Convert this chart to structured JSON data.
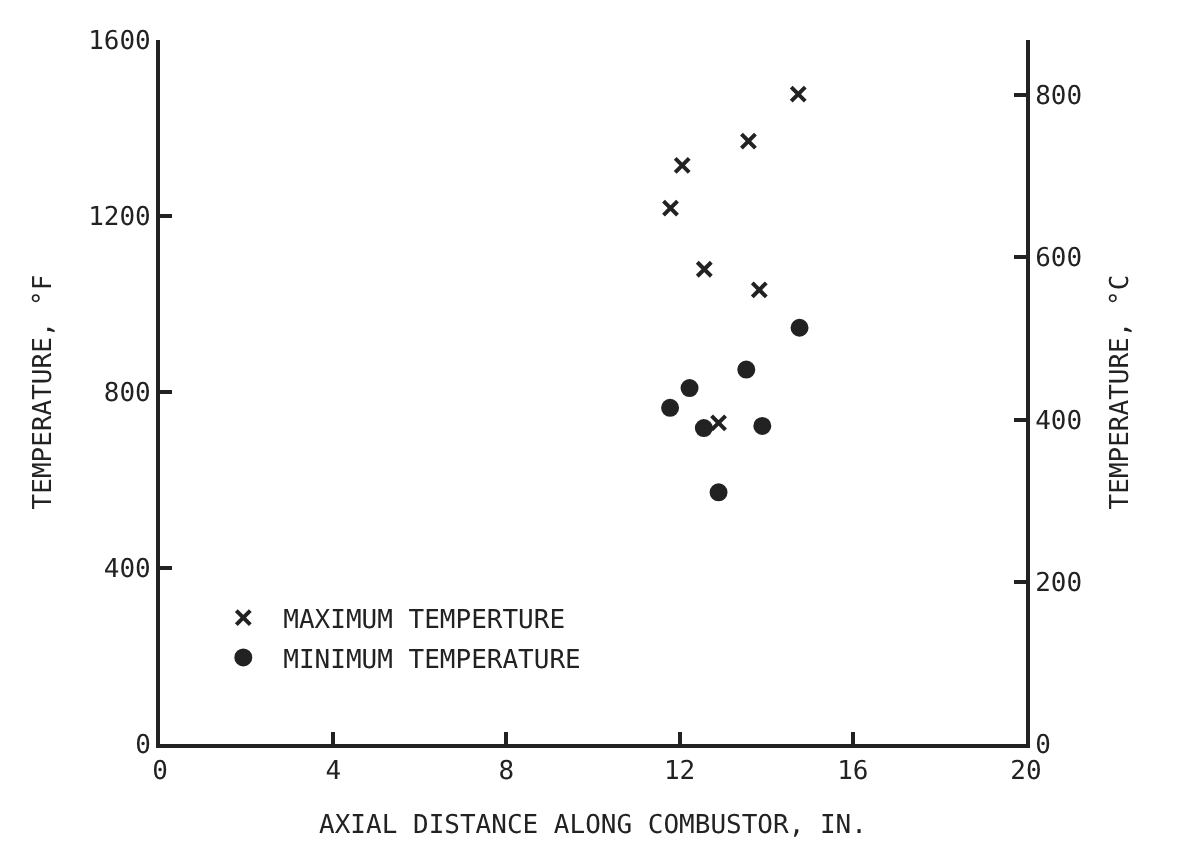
{
  "chart_data": {
    "type": "scatter",
    "xlabel": "AXIAL DISTANCE ALONG COMBUSTOR, IN.",
    "ylabel": "TEMPERATURE, °F",
    "y2label": "TEMPERATURE, °C",
    "xlim": [
      0,
      20
    ],
    "xticks": [
      0,
      4,
      8,
      12,
      16,
      20
    ],
    "ylim": [
      0,
      1600
    ],
    "yticks": [
      0,
      400,
      800,
      1200,
      1600
    ],
    "y2lim": [
      0,
      868
    ],
    "y2ticks": [
      0,
      200,
      400,
      600,
      800
    ],
    "legend": "bottom left",
    "series": [
      {
        "name": "MAXIMUM TEMPERTURE",
        "color": "#222222",
        "marker": "cross",
        "x": [
          14.74,
          13.59,
          12.06,
          11.79,
          12.57,
          13.84,
          12.9
        ],
        "values": [
          1477,
          1370,
          1315,
          1218,
          1079,
          1032,
          730
        ]
      },
      {
        "name": "MINIMUM TEMPERATURE",
        "color": "#222222",
        "marker": "circle",
        "x": [
          14.77,
          13.54,
          12.23,
          11.78,
          12.56,
          13.91,
          12.9
        ],
        "values": [
          946,
          851,
          809,
          764,
          718,
          723,
          572
        ]
      }
    ]
  }
}
